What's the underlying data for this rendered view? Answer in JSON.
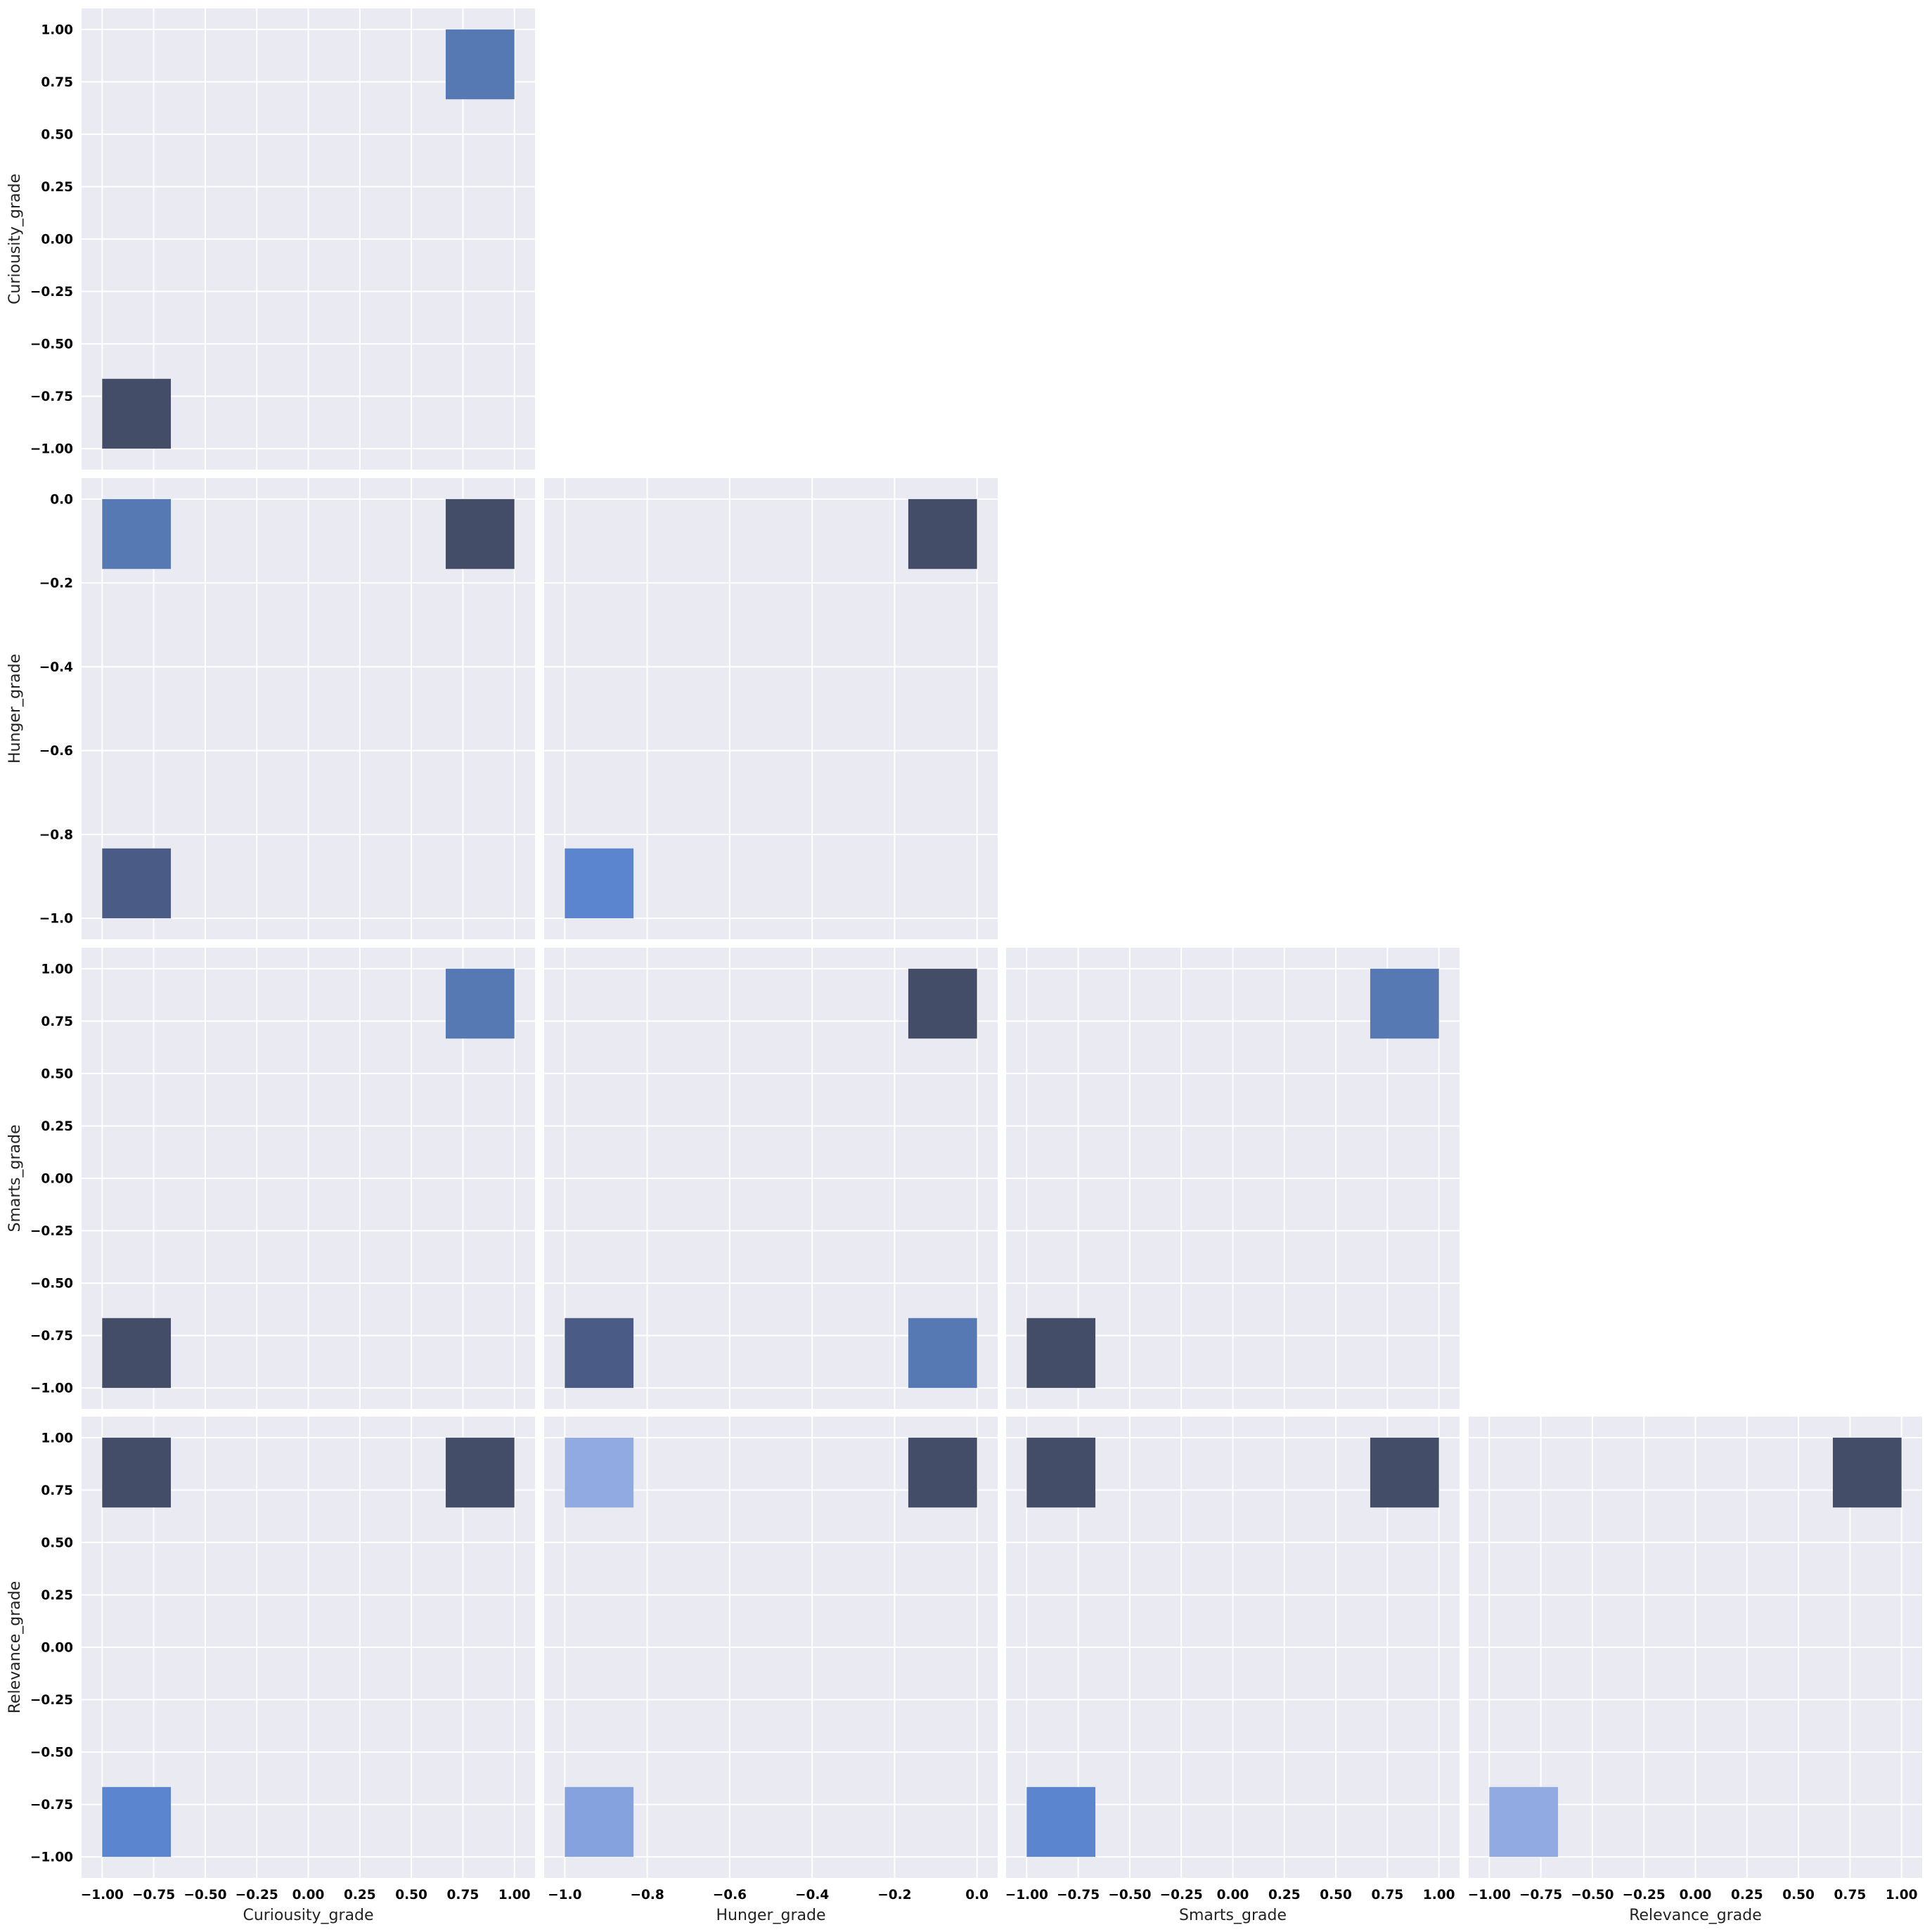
{
  "chart_data": {
    "type": "heatmap",
    "kind": "pairplot-lower-triangle-2d-histograms",
    "colors": {
      "panel_background": "#eaeaf2",
      "grid": "#ffffff",
      "cell_palette": [
        "#434d68",
        "#4a5c86",
        "#5678b3",
        "#5b86cf",
        "#86a2de",
        "#91abe2"
      ]
    },
    "grid": true,
    "variables": [
      {
        "name": "Curiousity_grade",
        "range": [
          -1.0,
          1.0
        ],
        "ylim": [
          -1.1,
          1.1
        ],
        "xlim": [
          -1.1,
          1.1
        ],
        "ticks": [
          -1.0,
          -0.75,
          -0.5,
          -0.25,
          0.0,
          0.25,
          0.5,
          0.75,
          1.0
        ],
        "tick_labels": [
          "−1.00",
          "−0.75",
          "−0.50",
          "−0.25",
          "0.00",
          "0.25",
          "0.50",
          "0.75",
          "1.00"
        ]
      },
      {
        "name": "Hunger_grade",
        "range": [
          -1.0,
          0.0
        ],
        "ylim": [
          -1.05,
          0.05
        ],
        "xlim": [
          -1.05,
          0.05
        ],
        "ticks": [
          -1.0,
          -0.8,
          -0.6,
          -0.4,
          -0.2,
          0.0
        ],
        "tick_labels": [
          "−1.0",
          "−0.8",
          "−0.6",
          "−0.4",
          "−0.2",
          "0.0"
        ]
      },
      {
        "name": "Smarts_grade",
        "range": [
          -1.0,
          1.0
        ],
        "ylim": [
          -1.1,
          1.1
        ],
        "xlim": [
          -1.1,
          1.1
        ],
        "ticks": [
          -1.0,
          -0.75,
          -0.5,
          -0.25,
          0.0,
          0.25,
          0.5,
          0.75,
          1.0
        ],
        "tick_labels": [
          "−1.00",
          "−0.75",
          "−0.50",
          "−0.25",
          "0.00",
          "0.25",
          "0.50",
          "0.75",
          "1.00"
        ]
      },
      {
        "name": "Relevance_grade",
        "range": [
          -1.0,
          1.0
        ],
        "ylim": [
          -1.1,
          1.1
        ],
        "xlim": [
          -1.1,
          1.1
        ],
        "ticks": [
          -1.0,
          -0.75,
          -0.5,
          -0.25,
          0.0,
          0.25,
          0.5,
          0.75,
          1.0
        ],
        "tick_labels": [
          "−1.00",
          "−0.75",
          "−0.50",
          "−0.25",
          "0.00",
          "0.25",
          "0.50",
          "0.75",
          "1.00"
        ]
      }
    ],
    "bins_per_axis": 6,
    "panels": [
      {
        "row": 0,
        "col": 0,
        "x": "Curiousity_grade",
        "y": "Curiousity_grade",
        "cells": [
          {
            "xbin": [
              0.6667,
              1.0
            ],
            "ybin": [
              0.6667,
              1.0
            ],
            "color": "#5678b3"
          },
          {
            "xbin": [
              -1.0,
              -0.6667
            ],
            "ybin": [
              -1.0,
              -0.6667
            ],
            "color": "#434d68"
          }
        ]
      },
      {
        "row": 1,
        "col": 0,
        "x": "Curiousity_grade",
        "y": "Hunger_grade",
        "cells": [
          {
            "xbin": [
              -1.0,
              -0.6667
            ],
            "ybin": [
              -0.1667,
              0.0
            ],
            "color": "#5678b3"
          },
          {
            "xbin": [
              0.6667,
              1.0
            ],
            "ybin": [
              -0.1667,
              0.0
            ],
            "color": "#434d68"
          },
          {
            "xbin": [
              -1.0,
              -0.6667
            ],
            "ybin": [
              -1.0,
              -0.8333
            ],
            "color": "#4a5c86"
          }
        ]
      },
      {
        "row": 1,
        "col": 1,
        "x": "Hunger_grade",
        "y": "Hunger_grade",
        "cells": [
          {
            "xbin": [
              -0.1667,
              0.0
            ],
            "ybin": [
              -0.1667,
              0.0
            ],
            "color": "#434d68"
          },
          {
            "xbin": [
              -1.0,
              -0.8333
            ],
            "ybin": [
              -1.0,
              -0.8333
            ],
            "color": "#5b86cf"
          }
        ]
      },
      {
        "row": 2,
        "col": 0,
        "x": "Curiousity_grade",
        "y": "Smarts_grade",
        "cells": [
          {
            "xbin": [
              0.6667,
              1.0
            ],
            "ybin": [
              0.6667,
              1.0
            ],
            "color": "#5678b3"
          },
          {
            "xbin": [
              -1.0,
              -0.6667
            ],
            "ybin": [
              -1.0,
              -0.6667
            ],
            "color": "#434d68"
          }
        ]
      },
      {
        "row": 2,
        "col": 1,
        "x": "Hunger_grade",
        "y": "Smarts_grade",
        "cells": [
          {
            "xbin": [
              -0.1667,
              0.0
            ],
            "ybin": [
              0.6667,
              1.0
            ],
            "color": "#434d68"
          },
          {
            "xbin": [
              -1.0,
              -0.8333
            ],
            "ybin": [
              -1.0,
              -0.6667
            ],
            "color": "#4a5c86"
          },
          {
            "xbin": [
              -0.1667,
              0.0
            ],
            "ybin": [
              -1.0,
              -0.6667
            ],
            "color": "#5678b3"
          }
        ]
      },
      {
        "row": 2,
        "col": 2,
        "x": "Smarts_grade",
        "y": "Smarts_grade",
        "cells": [
          {
            "xbin": [
              0.6667,
              1.0
            ],
            "ybin": [
              0.6667,
              1.0
            ],
            "color": "#5678b3"
          },
          {
            "xbin": [
              -1.0,
              -0.6667
            ],
            "ybin": [
              -1.0,
              -0.6667
            ],
            "color": "#434d68"
          }
        ]
      },
      {
        "row": 3,
        "col": 0,
        "x": "Curiousity_grade",
        "y": "Relevance_grade",
        "cells": [
          {
            "xbin": [
              -1.0,
              -0.6667
            ],
            "ybin": [
              0.6667,
              1.0
            ],
            "color": "#434d68"
          },
          {
            "xbin": [
              0.6667,
              1.0
            ],
            "ybin": [
              0.6667,
              1.0
            ],
            "color": "#434d68"
          },
          {
            "xbin": [
              -1.0,
              -0.6667
            ],
            "ybin": [
              -1.0,
              -0.6667
            ],
            "color": "#5b86cf"
          }
        ]
      },
      {
        "row": 3,
        "col": 1,
        "x": "Hunger_grade",
        "y": "Relevance_grade",
        "cells": [
          {
            "xbin": [
              -1.0,
              -0.8333
            ],
            "ybin": [
              0.6667,
              1.0
            ],
            "color": "#91abe2"
          },
          {
            "xbin": [
              -0.1667,
              0.0
            ],
            "ybin": [
              0.6667,
              1.0
            ],
            "color": "#434d68"
          },
          {
            "xbin": [
              -1.0,
              -0.8333
            ],
            "ybin": [
              -1.0,
              -0.6667
            ],
            "color": "#86a2de"
          }
        ]
      },
      {
        "row": 3,
        "col": 2,
        "x": "Smarts_grade",
        "y": "Relevance_grade",
        "cells": [
          {
            "xbin": [
              -1.0,
              -0.6667
            ],
            "ybin": [
              0.6667,
              1.0
            ],
            "color": "#434d68"
          },
          {
            "xbin": [
              0.6667,
              1.0
            ],
            "ybin": [
              0.6667,
              1.0
            ],
            "color": "#434d68"
          },
          {
            "xbin": [
              -1.0,
              -0.6667
            ],
            "ybin": [
              -1.0,
              -0.6667
            ],
            "color": "#5b86cf"
          }
        ]
      },
      {
        "row": 3,
        "col": 3,
        "x": "Relevance_grade",
        "y": "Relevance_grade",
        "cells": [
          {
            "xbin": [
              0.6667,
              1.0
            ],
            "ybin": [
              0.6667,
              1.0
            ],
            "color": "#434d68"
          },
          {
            "xbin": [
              -1.0,
              -0.6667
            ],
            "ybin": [
              -1.0,
              -0.6667
            ],
            "color": "#91abe2"
          }
        ]
      }
    ]
  }
}
